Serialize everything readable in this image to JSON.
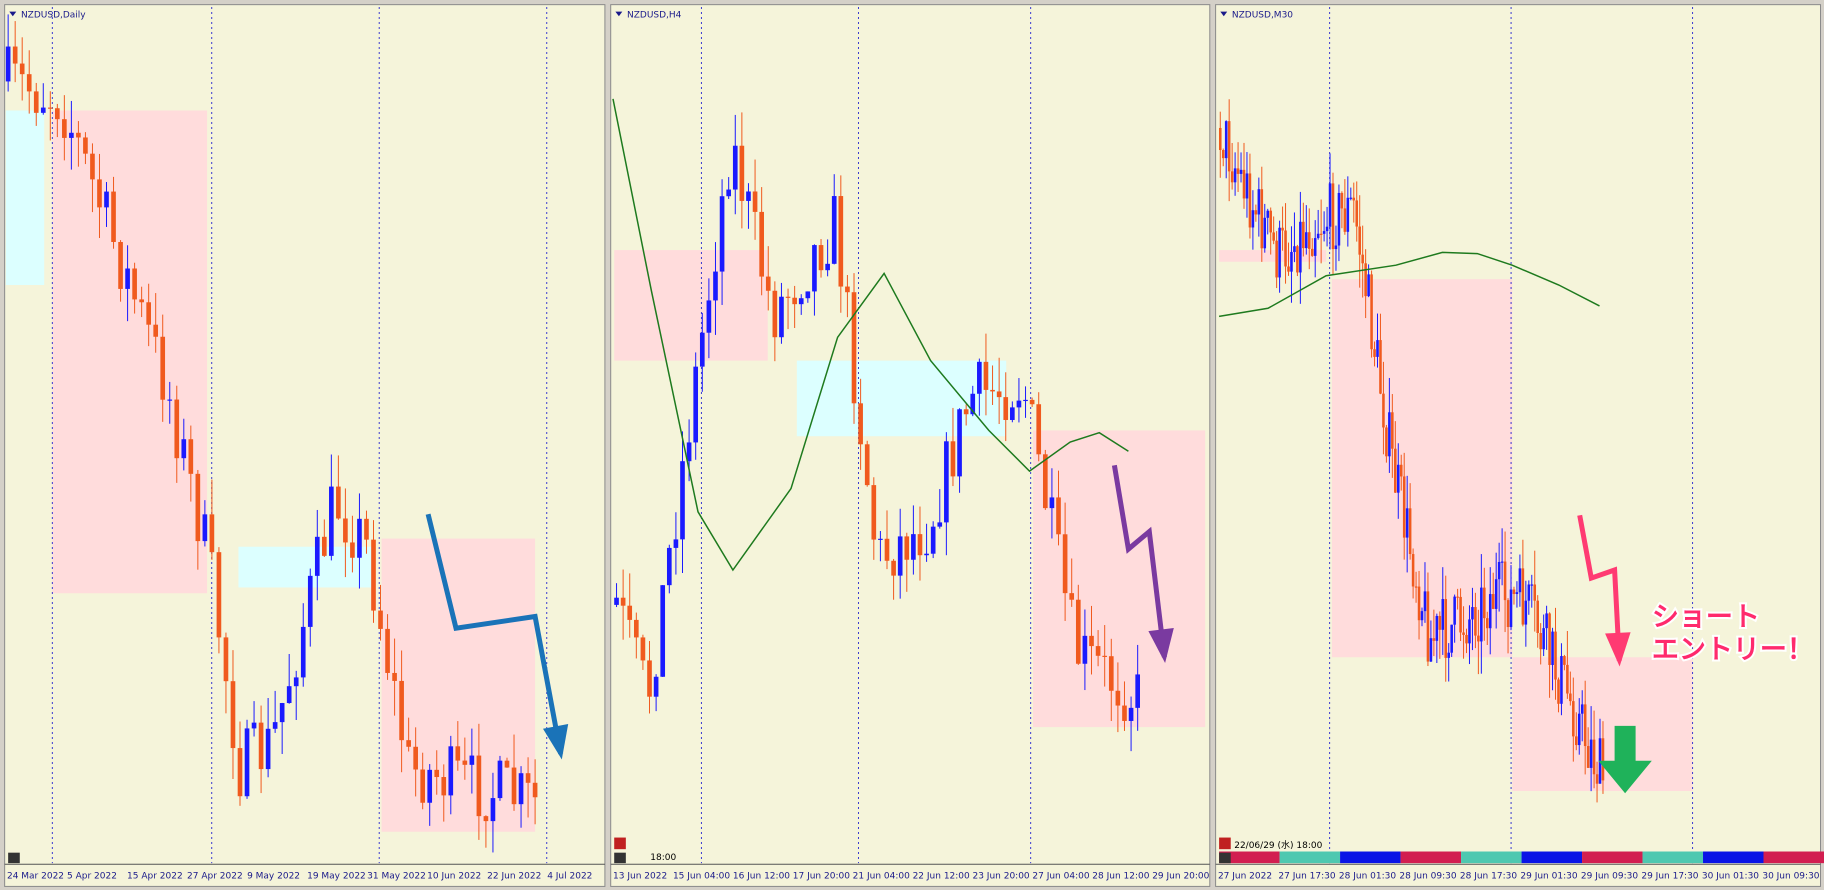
{
  "panels": [
    {
      "title": "NZDUSD,Daily",
      "x_labels": [
        "24 Mar 2022",
        "5 Apr 2022",
        "15 Apr 2022",
        "27 Apr 2022",
        "9 May 2022",
        "19 May 2022",
        "31 May 2022",
        "10 Jun 2022",
        "22 Jun 2022",
        "4 Jul 2022"
      ]
    },
    {
      "title": "NZDUSD,H4",
      "x_labels": [
        "13 Jun 2022",
        "15 Jun 04:00",
        "16 Jun 12:00",
        "17 Jun 20:00",
        "21 Jun 04:00",
        "22 Jun 12:00",
        "23 Jun 20:00",
        "27 Jun 04:00",
        "28 Jun 12:00",
        "29 Jun 20:00"
      ],
      "time_label": "18:00"
    },
    {
      "title": "NZDUSD,M30",
      "x_labels": [
        "27 Jun 2022",
        "27 Jun 17:30",
        "28 Jun 01:30",
        "28 Jun 09:30",
        "28 Jun 17:30",
        "29 Jun 01:30",
        "29 Jun 09:30",
        "29 Jun 17:30",
        "30 Jun 01:30",
        "30 Jun 09:30"
      ],
      "time_label": "22/06/29 (水) 18:00"
    }
  ],
  "annotation": {
    "lines": [
      "ショート",
      "エントリー！"
    ]
  }
}
